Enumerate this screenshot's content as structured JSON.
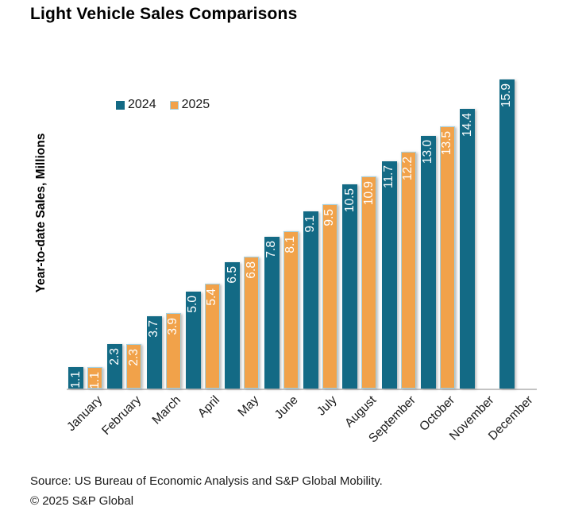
{
  "title": "Light Vehicle Sales Comparisons",
  "footer": {
    "source": "Source: US Bureau of Economic Analysis and S&P Global Mobility.",
    "copyright": "© 2025 S&P Global"
  },
  "colors": {
    "series_2024": "#136a85",
    "series_2025": "#f1a24a",
    "series_2025_border": "#a5d0de",
    "axis_line": "#c3c3c3",
    "value_label_text": "#ffffff"
  },
  "chart_data": {
    "type": "bar",
    "title": "Light Vehicle Sales Comparisons",
    "ylabel": "Year-to-date Sales, Millions",
    "xlabel": "",
    "ylim": [
      0,
      16
    ],
    "grid": false,
    "legend_position": "top-left-inside",
    "value_labels": "rotated-90-inside-end-white",
    "categories": [
      "January",
      "February",
      "March",
      "April",
      "May",
      "June",
      "July",
      "August",
      "September",
      "October",
      "November",
      "December"
    ],
    "series": [
      {
        "name": "2024",
        "color": "#136a85",
        "values": [
          1.1,
          2.3,
          3.7,
          5.0,
          6.5,
          7.8,
          9.1,
          10.5,
          11.7,
          13.0,
          14.4,
          15.9
        ]
      },
      {
        "name": "2025",
        "color": "#f1a24a",
        "border_color": "#a5d0de",
        "values": [
          1.1,
          2.3,
          3.9,
          5.4,
          6.8,
          8.1,
          9.5,
          10.9,
          12.2,
          13.5,
          null,
          null
        ]
      }
    ]
  }
}
